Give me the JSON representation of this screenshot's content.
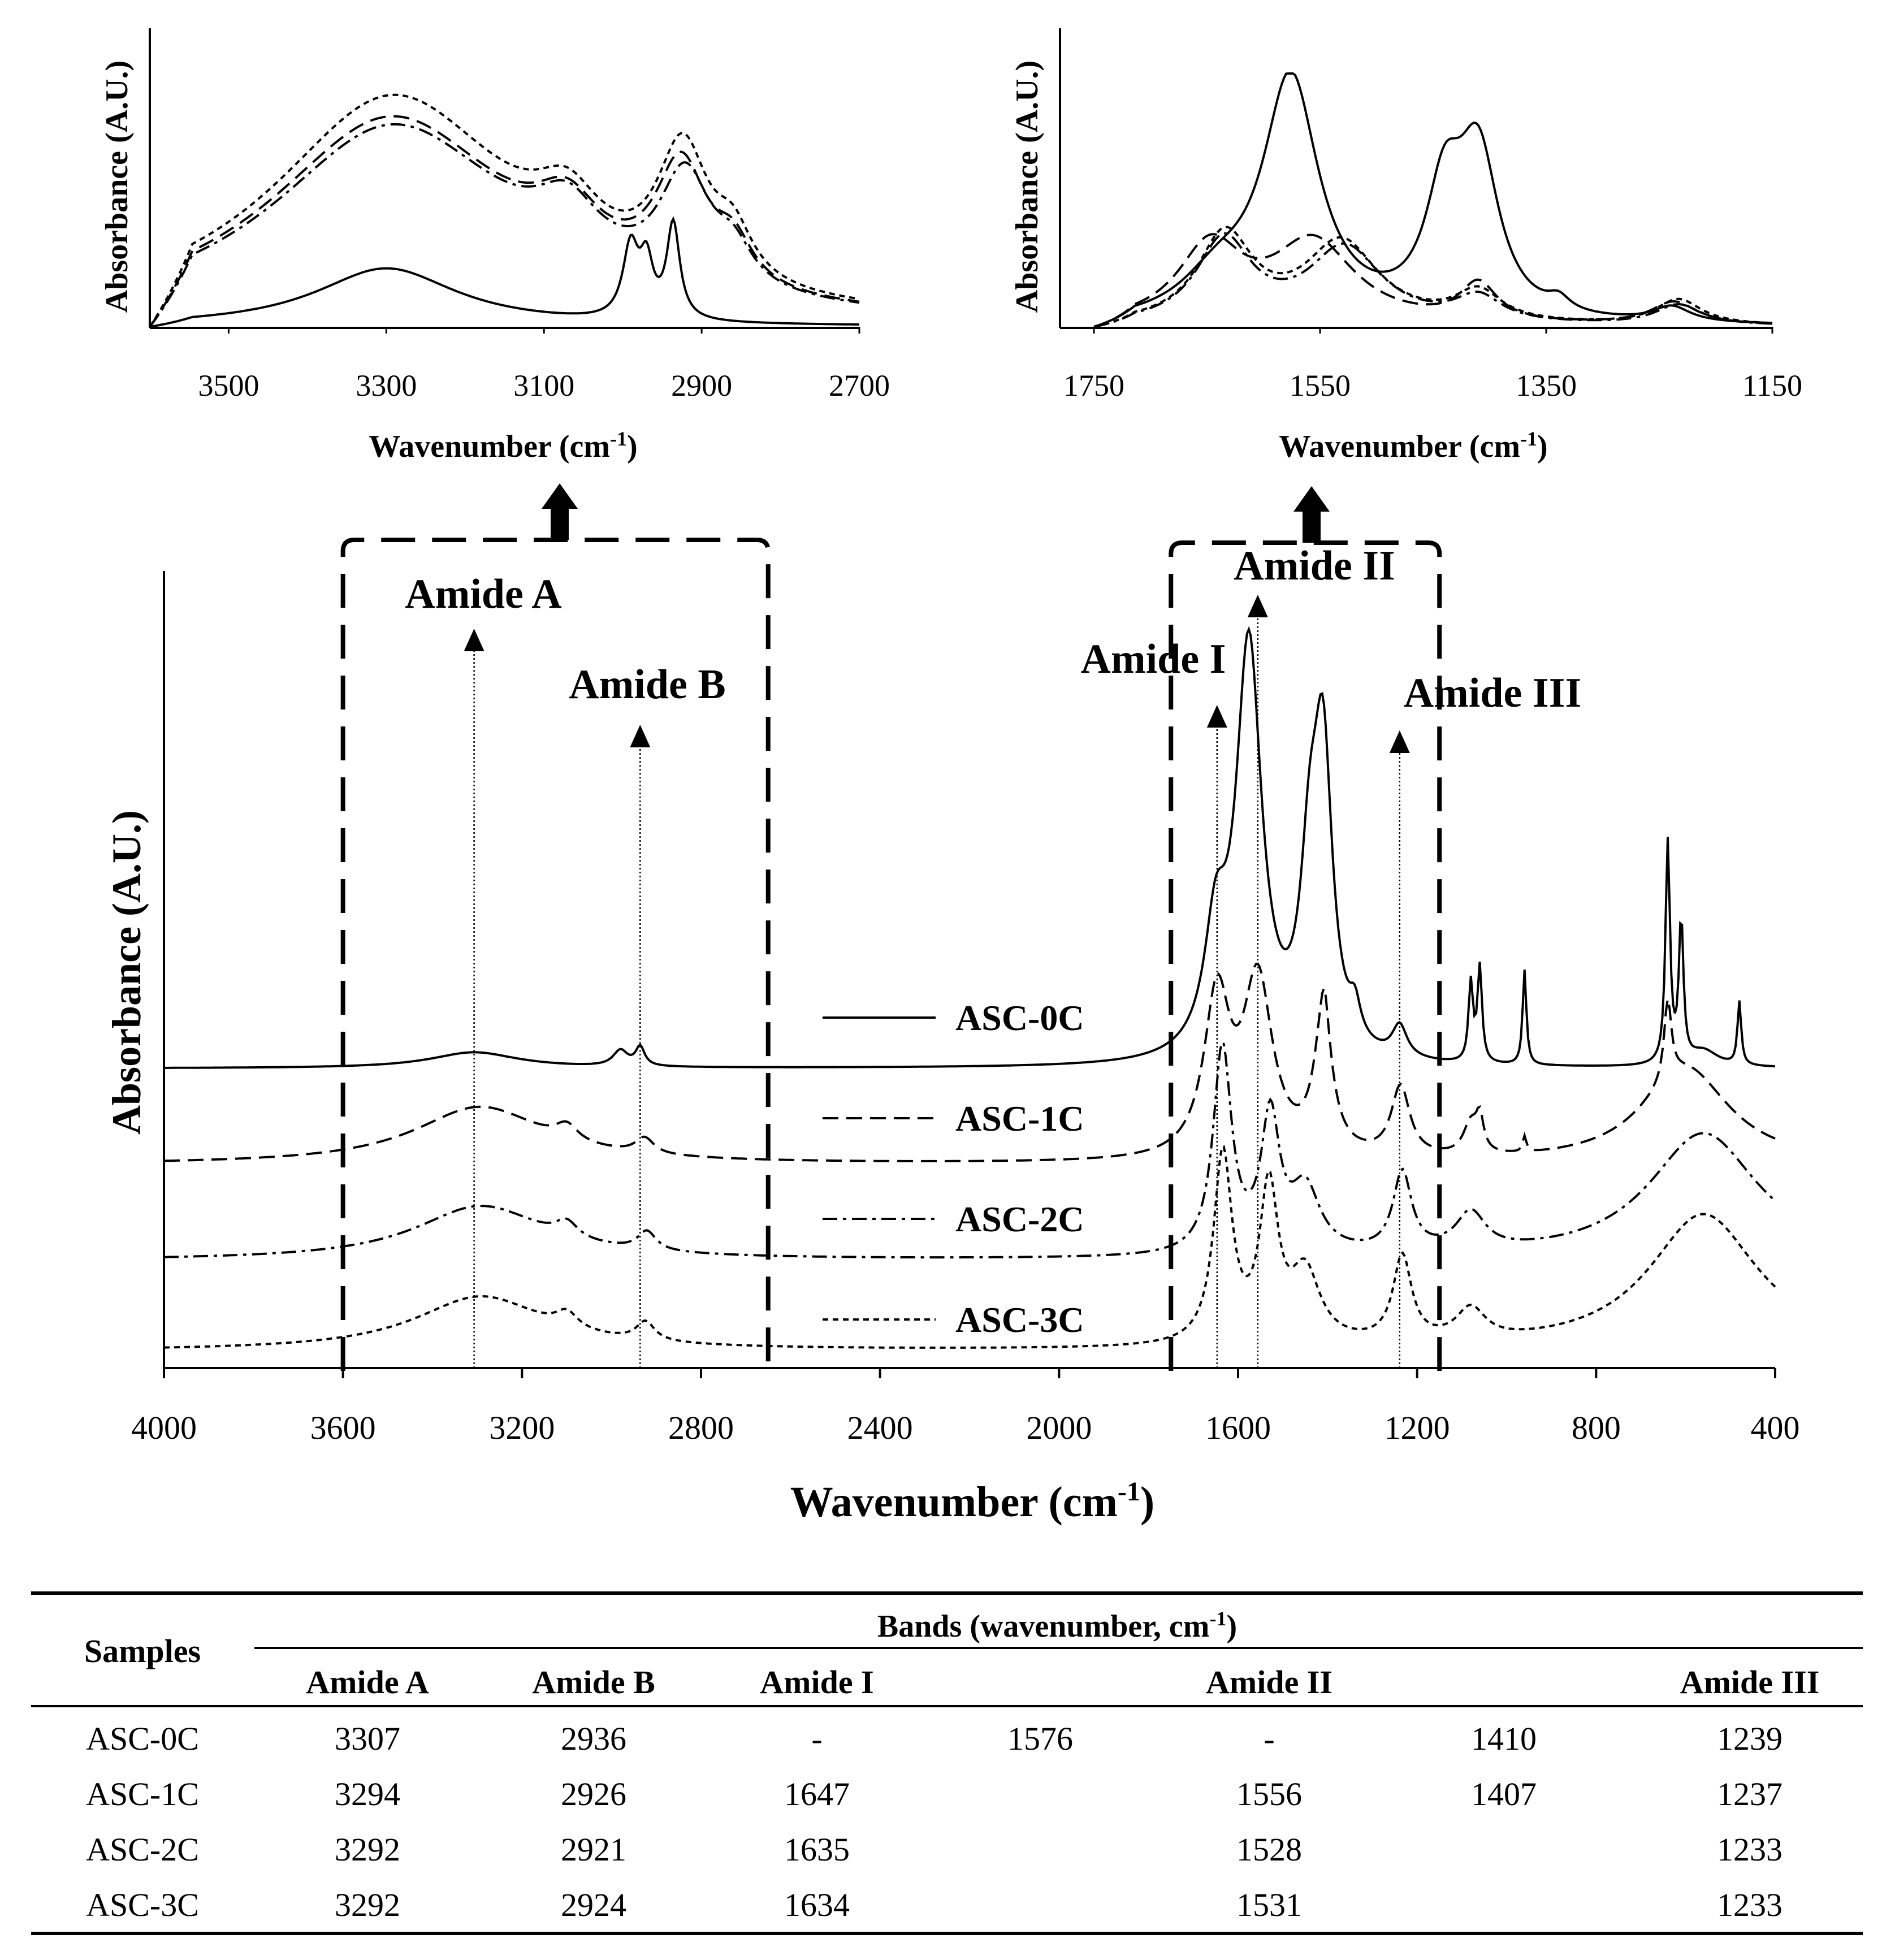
{
  "chart_data": [
    {
      "id": "main",
      "type": "line",
      "xlabel": "Wavenumber (cm",
      "xlabel_sup": "-1",
      "xlabel_close": ")",
      "ylabel": "Absorbance (A.U.)",
      "xlim": [
        4000,
        400
      ],
      "xticks": [
        4000,
        3600,
        3200,
        2800,
        2400,
        2000,
        1600,
        1200,
        800,
        400
      ],
      "y_ticks_shown": false,
      "legend": {
        "placement": "center-right",
        "entries": [
          "ASC-0C",
          "ASC-1C",
          "ASC-2C",
          "ASC-3C"
        ]
      },
      "annotations": [
        {
          "label": "Amide A",
          "x": 3307
        },
        {
          "label": "Amide B",
          "x": 2936
        },
        {
          "label": "Amide I",
          "x": 1647
        },
        {
          "label": "Amide II",
          "x": 1556
        },
        {
          "label": "Amide III",
          "x": 1239
        }
      ],
      "zoom_boxes": [
        {
          "from": 3600,
          "to": 2650,
          "target": "inset-left"
        },
        {
          "from": 1750,
          "to": 1150,
          "target": "inset-right"
        }
      ],
      "series": [
        {
          "name": "ASC-0C",
          "style": "solid",
          "offset": 3,
          "baseline": 0,
          "peaks": [
            [
              3307,
              0.05,
              120
            ],
            [
              2980,
              0.05,
              20
            ],
            [
              2936,
              0.06,
              12
            ],
            [
              1650,
              0.35,
              30
            ],
            [
              1576,
              1.3,
              35
            ],
            [
              1440,
              0.5,
              25
            ],
            [
              1410,
              0.9,
              25
            ],
            [
              1339,
              0.1,
              15
            ],
            [
              1239,
              0.1,
              20
            ],
            [
              1080,
              0.25,
              6
            ],
            [
              1060,
              0.3,
              6
            ],
            [
              960,
              0.3,
              5
            ],
            [
              640,
              0.7,
              6
            ],
            [
              610,
              0.45,
              6
            ],
            [
              560,
              0.05,
              40
            ],
            [
              480,
              0.2,
              5
            ]
          ]
        },
        {
          "name": "ASC-1C",
          "style": "dashed",
          "offset": 2,
          "baseline": 0,
          "peaks": [
            [
              3294,
              0.18,
              180
            ],
            [
              2926,
              0.05,
              25
            ],
            [
              3100,
              0.05,
              30
            ],
            [
              1647,
              0.5,
              35
            ],
            [
              1556,
              0.55,
              40
            ],
            [
              1410,
              0.4,
              25
            ],
            [
              1407,
              0.1,
              10
            ],
            [
              1237,
              0.22,
              25
            ],
            [
              1080,
              0.1,
              20
            ],
            [
              1060,
              0.1,
              10
            ],
            [
              960,
              0.05,
              5
            ],
            [
              640,
              0.25,
              10
            ],
            [
              600,
              0.3,
              120
            ]
          ]
        },
        {
          "name": "ASC-2C",
          "style": "dashdot",
          "offset": 1,
          "baseline": 0,
          "peaks": [
            [
              3292,
              0.17,
              180
            ],
            [
              2921,
              0.06,
              25
            ],
            [
              3100,
              0.05,
              30
            ],
            [
              1635,
              0.65,
              25
            ],
            [
              1528,
              0.42,
              25
            ],
            [
              1450,
              0.2,
              40
            ],
            [
              1233,
              0.25,
              25
            ],
            [
              1080,
              0.12,
              40
            ],
            [
              560,
              0.4,
              150
            ]
          ]
        },
        {
          "name": "ASC-3C",
          "style": "dotted",
          "offset": 0,
          "baseline": 0,
          "peaks": [
            [
              3292,
              0.17,
              180
            ],
            [
              2924,
              0.06,
              25
            ],
            [
              3100,
              0.05,
              30
            ],
            [
              1634,
              0.6,
              25
            ],
            [
              1531,
              0.48,
              25
            ],
            [
              1450,
              0.22,
              40
            ],
            [
              1233,
              0.27,
              25
            ],
            [
              1080,
              0.1,
              40
            ],
            [
              560,
              0.43,
              150
            ]
          ]
        }
      ]
    },
    {
      "id": "inset-left",
      "type": "line",
      "xlabel": "Wavenumber (cm",
      "xlabel_sup": "-1",
      "xlabel_close": ")",
      "ylabel": "Absorbance (A.U.)",
      "xlim": [
        3600,
        2700
      ],
      "xticks": [
        3500,
        3300,
        3100,
        2900,
        2700
      ],
      "series": [
        {
          "name": "ASC-0C",
          "style": "solid",
          "peaks": [
            [
              3300,
              0.22,
              110
            ],
            [
              2990,
              0.27,
              12
            ],
            [
              2970,
              0.2,
              10
            ],
            [
              2936,
              0.36,
              10
            ]
          ]
        },
        {
          "name": "ASC-1C",
          "style": "dashed",
          "peaks": [
            [
              3294,
              0.78,
              190
            ],
            [
              3070,
              0.2,
              50
            ],
            [
              2926,
              0.45,
              40
            ],
            [
              2860,
              0.15,
              30
            ]
          ]
        },
        {
          "name": "ASC-2C",
          "style": "dashdot",
          "peaks": [
            [
              3292,
              0.75,
              190
            ],
            [
              3070,
              0.2,
              50
            ],
            [
              2921,
              0.42,
              40
            ],
            [
              2860,
              0.13,
              30
            ]
          ]
        },
        {
          "name": "ASC-3C",
          "style": "dotted",
          "peaks": [
            [
              3292,
              0.86,
              190
            ],
            [
              3070,
              0.2,
              50
            ],
            [
              2924,
              0.5,
              40
            ],
            [
              2860,
              0.17,
              30
            ]
          ]
        }
      ]
    },
    {
      "id": "inset-right",
      "type": "line",
      "xlabel": "Wavenumber (cm",
      "xlabel_sup": "-1",
      "xlabel_close": ")",
      "ylabel": "Absorbance (A.U.)",
      "xlim": [
        1750,
        1150
      ],
      "xticks": [
        1750,
        1550,
        1350,
        1150
      ],
      "series": [
        {
          "name": "ASC-0C",
          "style": "solid",
          "peaks": [
            [
              1640,
              0.15,
              40
            ],
            [
              1576,
              0.95,
              30
            ],
            [
              1440,
              0.45,
              20
            ],
            [
              1410,
              0.62,
              22
            ],
            [
              1339,
              0.05,
              12
            ],
            [
              1239,
              0.06,
              20
            ]
          ]
        },
        {
          "name": "ASC-1C",
          "style": "dashed",
          "peaks": [
            [
              1647,
              0.3,
              35
            ],
            [
              1556,
              0.32,
              45
            ],
            [
              1410,
              0.15,
              20
            ],
            [
              1237,
              0.09,
              25
            ]
          ]
        },
        {
          "name": "ASC-2C",
          "style": "dashdot",
          "peaks": [
            [
              1635,
              0.33,
              30
            ],
            [
              1528,
              0.3,
              40
            ],
            [
              1410,
              0.1,
              25
            ],
            [
              1233,
              0.08,
              25
            ]
          ]
        },
        {
          "name": "ASC-3C",
          "style": "dotted",
          "peaks": [
            [
              1634,
              0.35,
              30
            ],
            [
              1531,
              0.32,
              40
            ],
            [
              1410,
              0.12,
              25
            ],
            [
              1233,
              0.1,
              25
            ]
          ]
        }
      ]
    }
  ],
  "table": {
    "header_samples": "Samples",
    "header_bands_prefix": "Bands (wavenumber, cm",
    "header_bands_sup": "-1",
    "header_bands_close": ")",
    "columns": [
      "Amide A",
      "Amide B",
      "Amide I",
      "Amide II",
      "Amide III"
    ],
    "rows": [
      {
        "sample": "ASC-0C",
        "cells": [
          "3307",
          "2936",
          "-",
          "1576",
          "-",
          "1410",
          "1239"
        ]
      },
      {
        "sample": "ASC-1C",
        "cells": [
          "3294",
          "2926",
          "1647",
          "",
          "1556",
          "1407",
          "1237"
        ]
      },
      {
        "sample": "ASC-2C",
        "cells": [
          "3292",
          "2921",
          "1635",
          "",
          "1528",
          "",
          "1233"
        ]
      },
      {
        "sample": "ASC-3C",
        "cells": [
          "3292",
          "2924",
          "1634",
          "",
          "1531",
          "",
          "1233"
        ]
      }
    ]
  },
  "colors": {
    "ink": "#000000",
    "background": "#ffffff"
  }
}
